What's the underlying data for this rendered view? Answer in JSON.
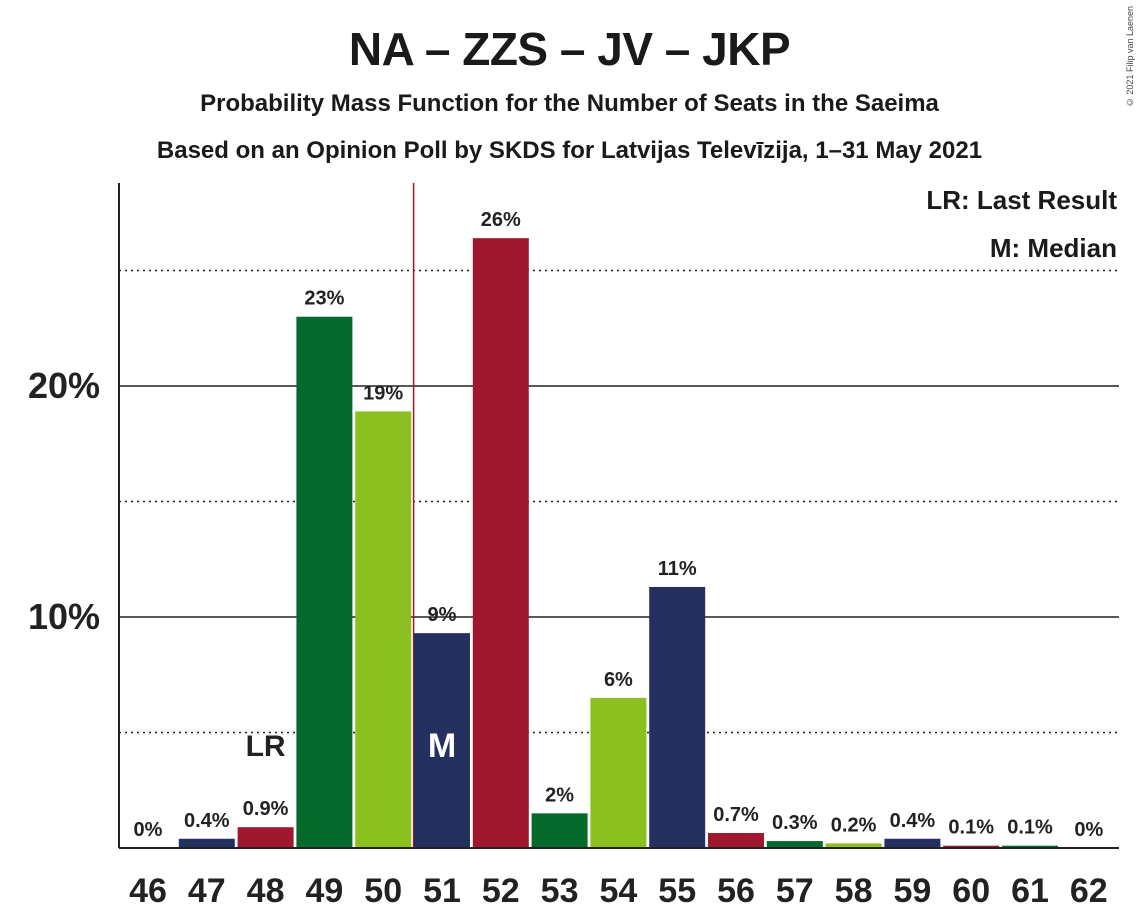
{
  "header": {
    "title": "NA – ZZS – JV – JKP",
    "subtitle": "Probability Mass Function for the Number of Seats in the Saeima",
    "subtitle2": "Based on an Opinion Poll by SKDS for Latvijas Televīzija, 1–31 May 2021",
    "copyright": "© 2021 Filip van Laenen"
  },
  "legend": {
    "last_result": "LR: Last Result",
    "median": "M: Median"
  },
  "chart_data": {
    "type": "bar",
    "title": "NA – ZZS – JV – JKP",
    "categories": [
      "46",
      "47",
      "48",
      "49",
      "50",
      "51",
      "52",
      "53",
      "54",
      "55",
      "56",
      "57",
      "58",
      "59",
      "60",
      "61",
      "62"
    ],
    "values": [
      0,
      0.4,
      0.9,
      23,
      18.9,
      9.3,
      26.4,
      1.5,
      6.5,
      11.3,
      0.65,
      0.3,
      0.2,
      0.4,
      0.1,
      0.1,
      0
    ],
    "value_labels": [
      "0%",
      "0.4%",
      "0.9%",
      "23%",
      "19%",
      "9%",
      "26%",
      "2%",
      "6%",
      "11%",
      "0.7%",
      "0.3%",
      "0.2%",
      "0.4%",
      "0.1%",
      "0.1%",
      "0%"
    ],
    "bar_colors": [
      "#243060",
      "#243060",
      "#A01830",
      "#046A2C",
      "#8CC020",
      "#243060",
      "#A01830",
      "#046A2C",
      "#8CC020",
      "#243060",
      "#A01830",
      "#046A2C",
      "#8CC020",
      "#243060",
      "#A01830",
      "#046A2C",
      "#8CC020"
    ],
    "ylim": [
      0,
      28.8
    ],
    "y_ticks": [
      10,
      20
    ],
    "y_tick_labels": [
      "10%",
      "20%"
    ],
    "dotted_gridlines": [
      5,
      15,
      25
    ],
    "last_result_seat": "48",
    "last_result_label": "LR",
    "median_seat": "51",
    "median_label": "M",
    "median_line_color": "#A01830",
    "legend_position": "top-right"
  }
}
